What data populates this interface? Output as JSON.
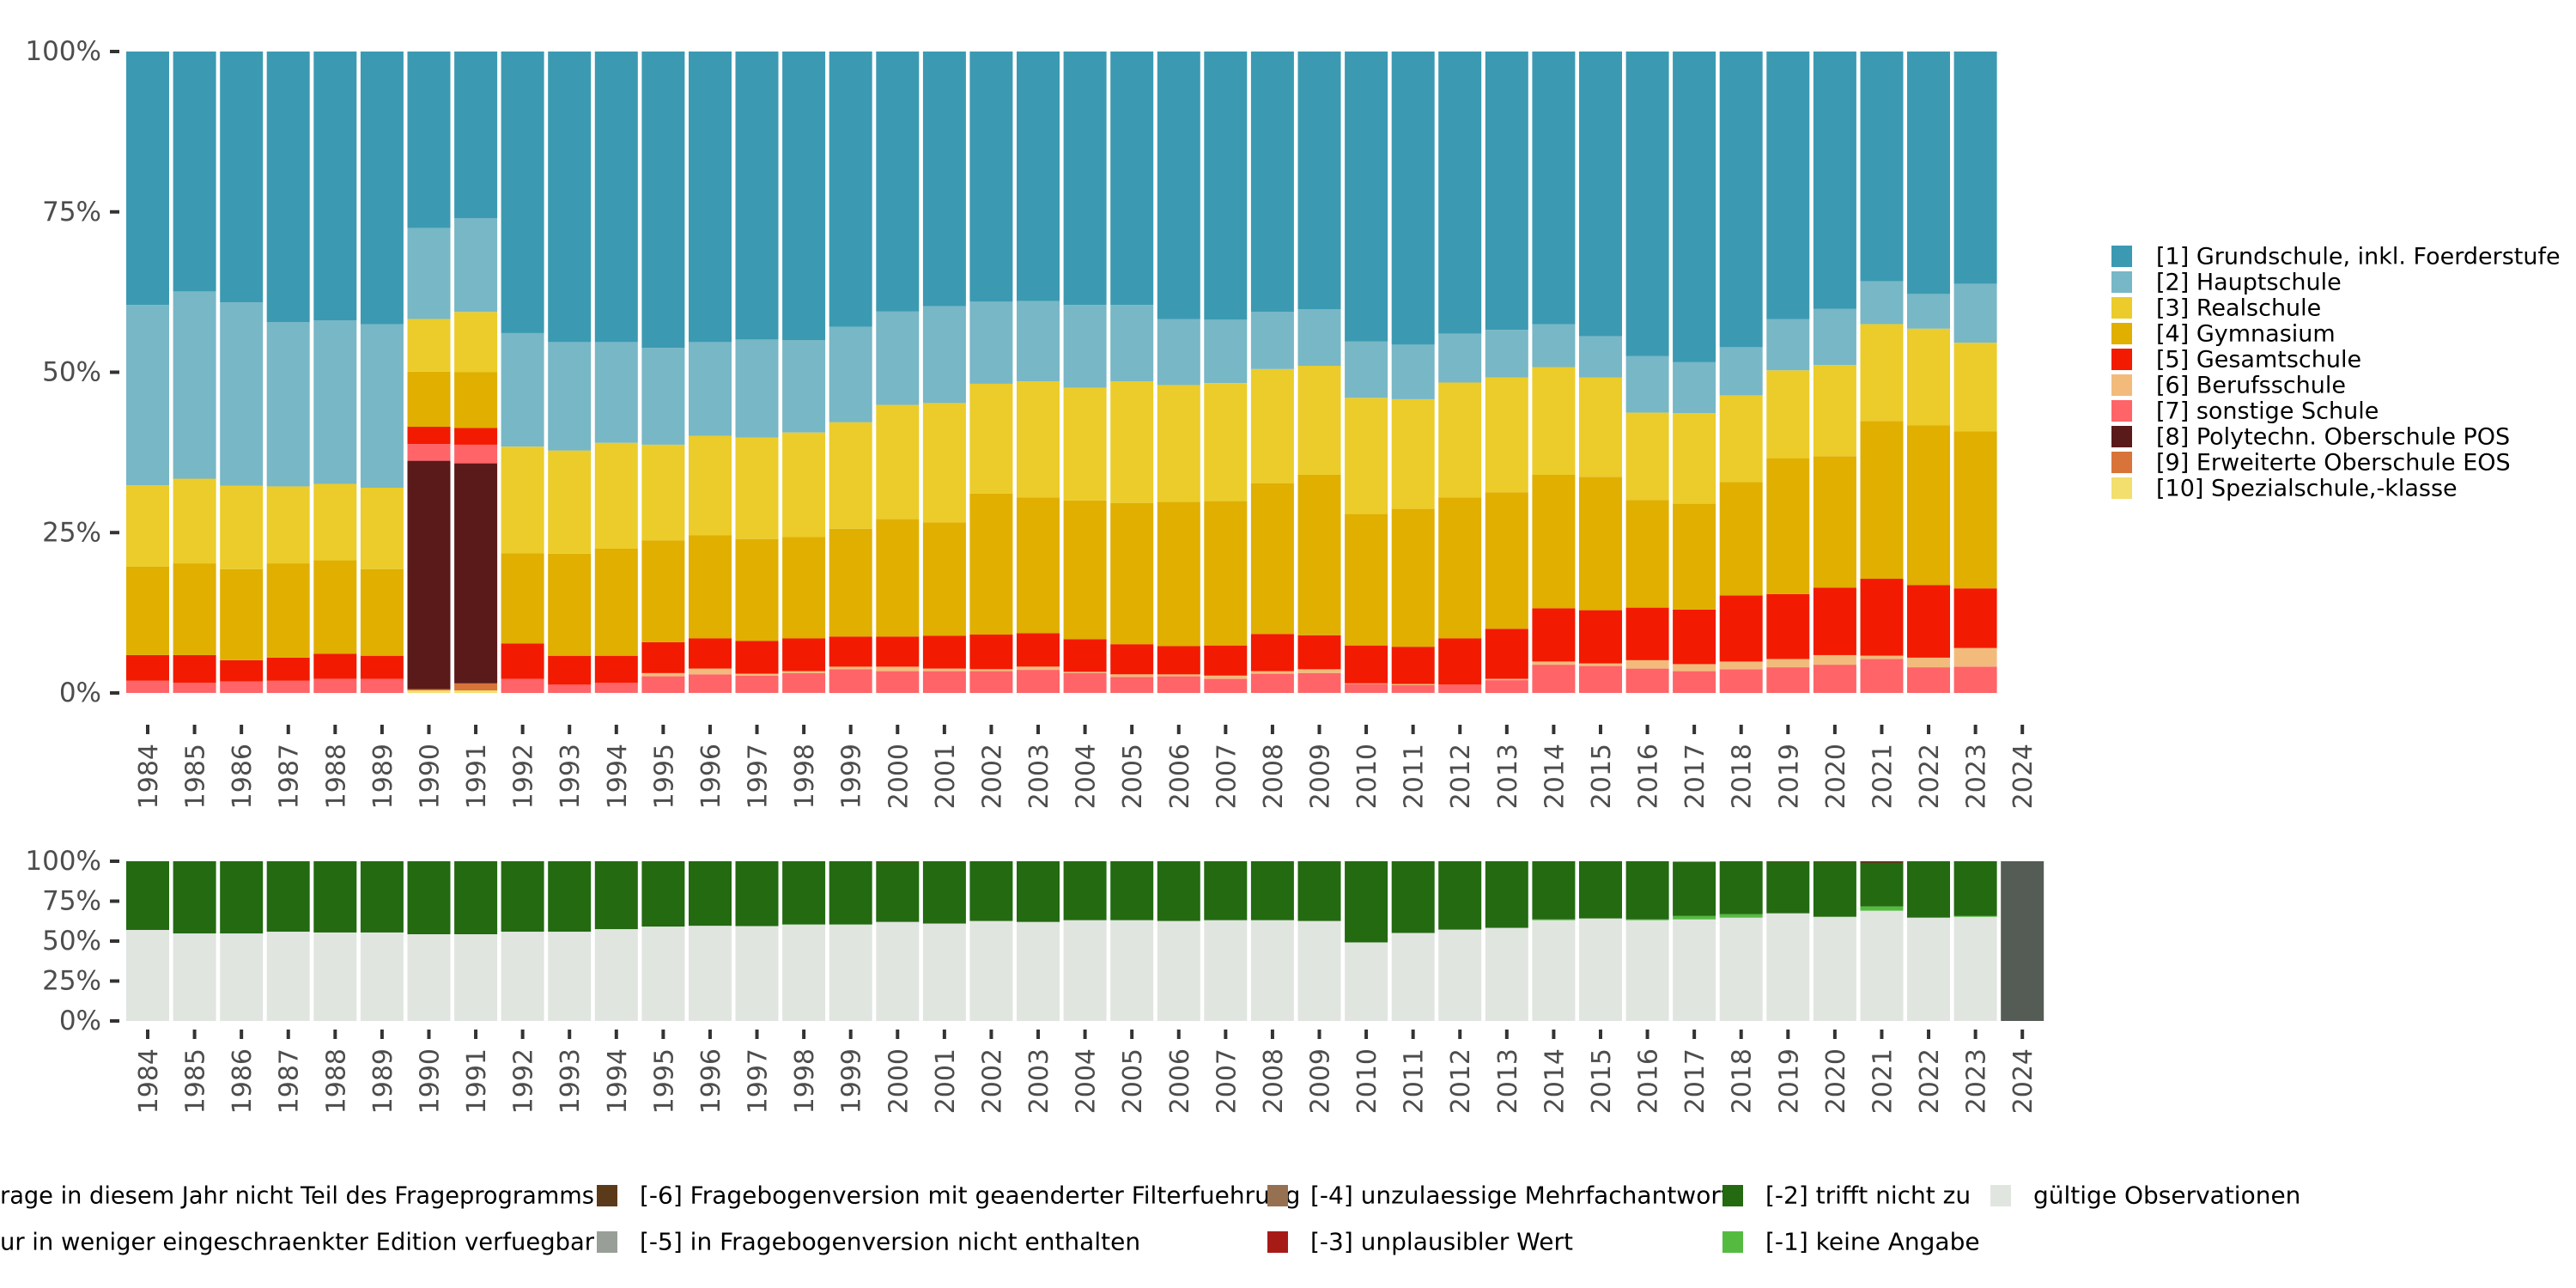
{
  "chart_data": [
    {
      "type": "bar",
      "stacked": "percent",
      "title": "",
      "xlabel": "",
      "ylabel": "",
      "ylim": [
        0,
        100
      ],
      "y_ticks": [
        "0%",
        "25%",
        "50%",
        "75%",
        "100%"
      ],
      "categories": [
        "1984",
        "1985",
        "1986",
        "1987",
        "1988",
        "1989",
        "1990",
        "1991",
        "1992",
        "1993",
        "1994",
        "1995",
        "1996",
        "1997",
        "1998",
        "1999",
        "2000",
        "2001",
        "2002",
        "2003",
        "2004",
        "2005",
        "2006",
        "2007",
        "2008",
        "2009",
        "2010",
        "2011",
        "2012",
        "2013",
        "2014",
        "2015",
        "2016",
        "2017",
        "2018",
        "2019",
        "2020",
        "2021",
        "2022",
        "2023",
        "2024"
      ],
      "legend_position": "right",
      "series": [
        {
          "name": "[10] Spezialschule,-klasse",
          "color": "#f2df6e",
          "values": [
            0,
            0,
            0,
            0,
            0,
            0,
            0.4,
            0.4,
            0,
            0,
            0,
            0,
            0,
            0,
            0,
            0,
            0,
            0,
            0,
            0,
            0,
            0,
            0,
            0,
            0,
            0,
            0,
            0,
            0,
            0,
            0,
            0,
            0,
            0,
            0,
            0,
            0,
            0,
            0,
            0,
            null
          ]
        },
        {
          "name": "[9] Erweiterte Oberschule EOS",
          "color": "#d8743a",
          "values": [
            0,
            0,
            0,
            0,
            0,
            0,
            0.2,
            1.1,
            0,
            0,
            0,
            0,
            0,
            0,
            0,
            0,
            0,
            0,
            0,
            0,
            0,
            0,
            0,
            0,
            0,
            0,
            0,
            0,
            0,
            0,
            0,
            0,
            0,
            0,
            0,
            0,
            0,
            0,
            0,
            0,
            null
          ]
        },
        {
          "name": "[8] Polytechn. Oberschule POS",
          "color": "#5a1a1a",
          "values": [
            0,
            0,
            0,
            0,
            0,
            0,
            35.6,
            34.3,
            0,
            0,
            0,
            0,
            0,
            0,
            0,
            0,
            0,
            0,
            0,
            0,
            0,
            0,
            0,
            0,
            0,
            0,
            0,
            0,
            0,
            0,
            0,
            0,
            0,
            0,
            0,
            0,
            0,
            0,
            0,
            0,
            null
          ]
        },
        {
          "name": "[7] sonstige Schule",
          "color": "#ff6468",
          "values": [
            1.9,
            1.6,
            1.8,
            1.9,
            2.2,
            2.2,
            2.6,
            2.9,
            2.2,
            1.3,
            1.6,
            2.6,
            2.9,
            2.7,
            3.1,
            3.7,
            3.4,
            3.4,
            3.4,
            3.6,
            3.1,
            2.5,
            2.6,
            2.2,
            3.0,
            3.1,
            1.4,
            1.2,
            1.3,
            2.0,
            4.4,
            4.2,
            3.8,
            3.4,
            3.7,
            4.0,
            4.4,
            5.3,
            4.0,
            4.1,
            null
          ]
        },
        {
          "name": "[6] Berufsschule",
          "color": "#f2bb7c",
          "values": [
            0,
            0,
            0,
            0,
            0,
            0,
            0,
            0,
            0,
            0,
            0,
            0.5,
            0.9,
            0.3,
            0.3,
            0.4,
            0.7,
            0.4,
            0.3,
            0.5,
            0.2,
            0.4,
            0.3,
            0.5,
            0.4,
            0.6,
            0.1,
            0.2,
            0,
            0.2,
            0.5,
            0.4,
            1.3,
            1.1,
            1.2,
            1.3,
            1.5,
            0.5,
            1.5,
            2.9,
            null
          ]
        },
        {
          "name": "[5] Gesamtschule",
          "color": "#f21a00",
          "values": [
            4.0,
            4.3,
            3.3,
            3.6,
            3.9,
            3.6,
            2.7,
            2.6,
            5.5,
            4.5,
            4.2,
            4.8,
            4.7,
            5.1,
            5.1,
            4.7,
            4.7,
            5.1,
            5.4,
            5.2,
            5.1,
            4.7,
            4.4,
            4.7,
            5.8,
            5.3,
            5.9,
            5.8,
            7.2,
            7.8,
            8.3,
            8.3,
            8.2,
            8.5,
            10.3,
            10.1,
            10.5,
            12.0,
            11.3,
            9.3,
            null
          ]
        },
        {
          "name": "[4] Gymnasium",
          "color": "#e0af00",
          "values": [
            13.8,
            14.3,
            14.2,
            14.7,
            14.6,
            13.5,
            8.6,
            8.7,
            14.1,
            15.9,
            16.7,
            15.9,
            16.1,
            15.9,
            15.8,
            16.8,
            18.3,
            17.7,
            22.0,
            21.2,
            21.6,
            22.0,
            22.5,
            22.5,
            23.5,
            25.0,
            20.5,
            21.5,
            22.0,
            21.3,
            20.8,
            20.8,
            16.8,
            16.5,
            17.7,
            21.2,
            20.5,
            24.6,
            24.9,
            24.5,
            null
          ]
        },
        {
          "name": "[3] Realschule",
          "color": "#ebcc2a",
          "values": [
            12.7,
            13.2,
            13.0,
            12.0,
            11.9,
            12.7,
            8.2,
            9.4,
            16.6,
            16.1,
            16.5,
            14.9,
            15.5,
            15.8,
            16.3,
            16.6,
            17.8,
            18.6,
            17.1,
            18.1,
            17.6,
            19.0,
            18.2,
            18.4,
            17.8,
            17.0,
            18.1,
            17.1,
            17.9,
            17.9,
            16.8,
            15.5,
            13.6,
            14.1,
            13.5,
            13.7,
            14.2,
            15.1,
            15.1,
            13.8,
            null
          ]
        },
        {
          "name": "[2] Hauptschule",
          "color": "#78b7c5",
          "values": [
            28.1,
            29.2,
            28.6,
            25.6,
            25.5,
            25.5,
            14.2,
            14.6,
            17.7,
            16.9,
            15.7,
            15.1,
            14.6,
            15.3,
            14.4,
            14.9,
            14.6,
            15.1,
            12.8,
            12.5,
            12.9,
            11.9,
            10.3,
            9.9,
            8.9,
            8.8,
            8.8,
            8.5,
            7.6,
            7.4,
            6.7,
            6.4,
            8.8,
            8.0,
            7.5,
            8.0,
            8.8,
            6.7,
            5.4,
            9.2,
            null
          ]
        },
        {
          "name": "[1] Grundschule, inkl. Foerderstufe",
          "color": "#3b9ab2",
          "values": [
            39.5,
            37.4,
            39.1,
            42.2,
            41.9,
            42.5,
            27.5,
            26.0,
            43.9,
            45.3,
            45.3,
            46.2,
            45.3,
            44.9,
            45.0,
            42.9,
            40.5,
            39.7,
            39.0,
            38.9,
            39.5,
            39.5,
            41.7,
            41.8,
            40.6,
            40.2,
            45.2,
            45.7,
            44.0,
            43.4,
            42.5,
            44.4,
            47.5,
            48.4,
            46.1,
            41.7,
            40.1,
            35.8,
            37.8,
            36.2,
            null
          ]
        }
      ]
    },
    {
      "type": "bar",
      "stacked": "percent",
      "title": "",
      "xlabel": "",
      "ylabel": "",
      "ylim": [
        0,
        100
      ],
      "y_ticks": [
        "0%",
        "25%",
        "50%",
        "75%",
        "100%"
      ],
      "categories": [
        "1984",
        "1985",
        "1986",
        "1987",
        "1988",
        "1989",
        "1990",
        "1991",
        "1992",
        "1993",
        "1994",
        "1995",
        "1996",
        "1997",
        "1998",
        "1999",
        "2000",
        "2001",
        "2002",
        "2003",
        "2004",
        "2005",
        "2006",
        "2007",
        "2008",
        "2009",
        "2010",
        "2011",
        "2012",
        "2013",
        "2014",
        "2015",
        "2016",
        "2017",
        "2018",
        "2019",
        "2020",
        "2021",
        "2022",
        "2023",
        "2024"
      ],
      "legend_position": "bottom",
      "series": [
        {
          "name": "gültige Observationen",
          "color": "#e0e5e0",
          "values": [
            57.0,
            54.8,
            54.8,
            55.9,
            55.4,
            55.4,
            54.3,
            54.3,
            55.9,
            55.9,
            57.5,
            59.1,
            59.6,
            59.4,
            60.4,
            60.4,
            62.0,
            61.0,
            62.6,
            62.0,
            63.1,
            63.1,
            62.6,
            63.1,
            63.1,
            62.6,
            49.2,
            55.1,
            57.2,
            58.3,
            63.1,
            64.2,
            63.1,
            63.6,
            64.7,
            67.4,
            65.2,
            69.0,
            64.7,
            65.2,
            0
          ]
        },
        {
          "name": "[-1] keine Angabe",
          "color": "#55bb40",
          "values": [
            0,
            0,
            0,
            0,
            0,
            0,
            0,
            0,
            0,
            0,
            0,
            0,
            0,
            0,
            0,
            0,
            0,
            0,
            0,
            0,
            0,
            0,
            0,
            0,
            0,
            0,
            0,
            0,
            0,
            0,
            0.5,
            0,
            0.5,
            2.1,
            2.1,
            0,
            0,
            2.7,
            0,
            0.5,
            0
          ]
        },
        {
          "name": "[-2] trifft nicht zu",
          "color": "#236a11",
          "values": [
            43.0,
            45.2,
            45.2,
            44.1,
            44.6,
            44.6,
            45.7,
            45.7,
            44.1,
            44.1,
            42.5,
            40.9,
            40.4,
            40.6,
            39.6,
            39.6,
            37.5,
            39.0,
            37.4,
            38.0,
            36.9,
            36.9,
            37.4,
            36.9,
            36.9,
            37.4,
            50.8,
            44.9,
            42.8,
            41.7,
            36.4,
            35.8,
            36.4,
            33.8,
            33.2,
            32.1,
            34.3,
            27.2,
            35.3,
            34.3,
            0
          ]
        },
        {
          "name": "[-3] unplausibler Wert",
          "color": "#a71b17",
          "values": [
            0,
            0,
            0,
            0,
            0,
            0,
            0,
            0,
            0,
            0,
            0,
            0,
            0,
            0,
            0,
            0,
            0.5,
            0,
            0,
            0,
            0,
            0,
            0,
            0,
            0,
            0,
            0,
            0,
            0,
            0,
            0,
            0,
            0,
            0,
            0,
            0.5,
            0.5,
            0,
            0,
            0,
            0
          ]
        },
        {
          "name": "[-4] unzulaessige Mehrfachantwort",
          "color": "#957152",
          "values": [
            0,
            0,
            0,
            0,
            0,
            0,
            0,
            0,
            0,
            0,
            0,
            0,
            0,
            0,
            0,
            0,
            0,
            0,
            0,
            0,
            0,
            0,
            0,
            0,
            0,
            0,
            0,
            0,
            0,
            0,
            0,
            0,
            0,
            0,
            0,
            0,
            0,
            0,
            0,
            0,
            0
          ]
        },
        {
          "name": "[-5] in Fragebogenversion nicht enthalten",
          "color": "#9a9e99",
          "values": [
            0,
            0,
            0,
            0,
            0,
            0,
            0,
            0,
            0,
            0,
            0,
            0,
            0,
            0,
            0,
            0,
            0,
            0,
            0,
            0,
            0,
            0,
            0,
            0,
            0,
            0,
            0,
            0,
            0,
            0,
            0,
            0,
            0,
            0.5,
            0,
            0,
            0,
            0,
            0,
            0,
            0
          ]
        },
        {
          "name": "[-6] Fragebogenversion mit geaenderter Filterfuehrung",
          "color": "#5b3a1a",
          "values": [
            0,
            0,
            0,
            0,
            0,
            0,
            0,
            0,
            0,
            0,
            0,
            0,
            0,
            0,
            0,
            0,
            0,
            0,
            0,
            0,
            0,
            0,
            0,
            0,
            0,
            0,
            0,
            0,
            0,
            0,
            0,
            0,
            0,
            0,
            0,
            0,
            0,
            1.1,
            0,
            0,
            0
          ]
        },
        {
          "name": "ur in weniger eingeschraenkter Edition verfuegbar",
          "color": "#8c8c8c",
          "values": [
            0,
            0,
            0,
            0,
            0,
            0,
            0,
            0,
            0,
            0,
            0,
            0,
            0,
            0,
            0,
            0,
            0,
            0,
            0,
            0,
            0,
            0,
            0,
            0,
            0,
            0,
            0,
            0,
            0,
            0,
            0,
            0,
            0,
            0,
            0,
            0,
            0,
            0,
            0,
            0,
            0
          ]
        },
        {
          "name": "rage in diesem Jahr nicht Teil des Frageprogramms",
          "color": "#545c55",
          "values": [
            0,
            0,
            0,
            0,
            0,
            0,
            0,
            0,
            0,
            0,
            0,
            0,
            0,
            0,
            0,
            0,
            0,
            0,
            0,
            0,
            0,
            0,
            0,
            0,
            0,
            0,
            0,
            0,
            0,
            0,
            0,
            0,
            0,
            0,
            0,
            0,
            0,
            0,
            0,
            0,
            100
          ]
        }
      ]
    }
  ],
  "right_legend": {
    "items": [
      {
        "label": "[1] Grundschule, inkl. Foerderstufe",
        "color": "#3b9ab2"
      },
      {
        "label": "[2] Hauptschule",
        "color": "#78b7c5"
      },
      {
        "label": "[3] Realschule",
        "color": "#ebcc2a"
      },
      {
        "label": "[4] Gymnasium",
        "color": "#e0af00"
      },
      {
        "label": "[5] Gesamtschule",
        "color": "#f21a00"
      },
      {
        "label": "[6] Berufsschule",
        "color": "#f2bb7c"
      },
      {
        "label": "[7] sonstige Schule",
        "color": "#ff6468"
      },
      {
        "label": "[8] Polytechn. Oberschule POS",
        "color": "#5a1a1a"
      },
      {
        "label": "[9] Erweiterte Oberschule EOS",
        "color": "#d8743a"
      },
      {
        "label": "[10] Spezialschule,-klasse",
        "color": "#f2df6e"
      }
    ]
  },
  "bottom_legend": {
    "items": [
      {
        "label": "rage in diesem Jahr nicht Teil des Frageprogramms",
        "color": "#545c55"
      },
      {
        "label": "ur in weniger eingeschraenkter Edition verfuegbar",
        "color": "#8c8c8c"
      },
      {
        "label": "[-6] Fragebogenversion mit geaenderter Filterfuehrung",
        "color": "#5b3a1a"
      },
      {
        "label": "[-5] in Fragebogenversion nicht enthalten",
        "color": "#9a9e99"
      },
      {
        "label": "[-4] unzulaessige Mehrfachantwort",
        "color": "#957152"
      },
      {
        "label": "[-3] unplausibler Wert",
        "color": "#a71b17"
      },
      {
        "label": "[-2] trifft nicht zu",
        "color": "#236a11"
      },
      {
        "label": "[-1] keine Angabe",
        "color": "#55bb40"
      },
      {
        "label": "gültige Observationen",
        "color": "#e0e5e0"
      }
    ]
  }
}
